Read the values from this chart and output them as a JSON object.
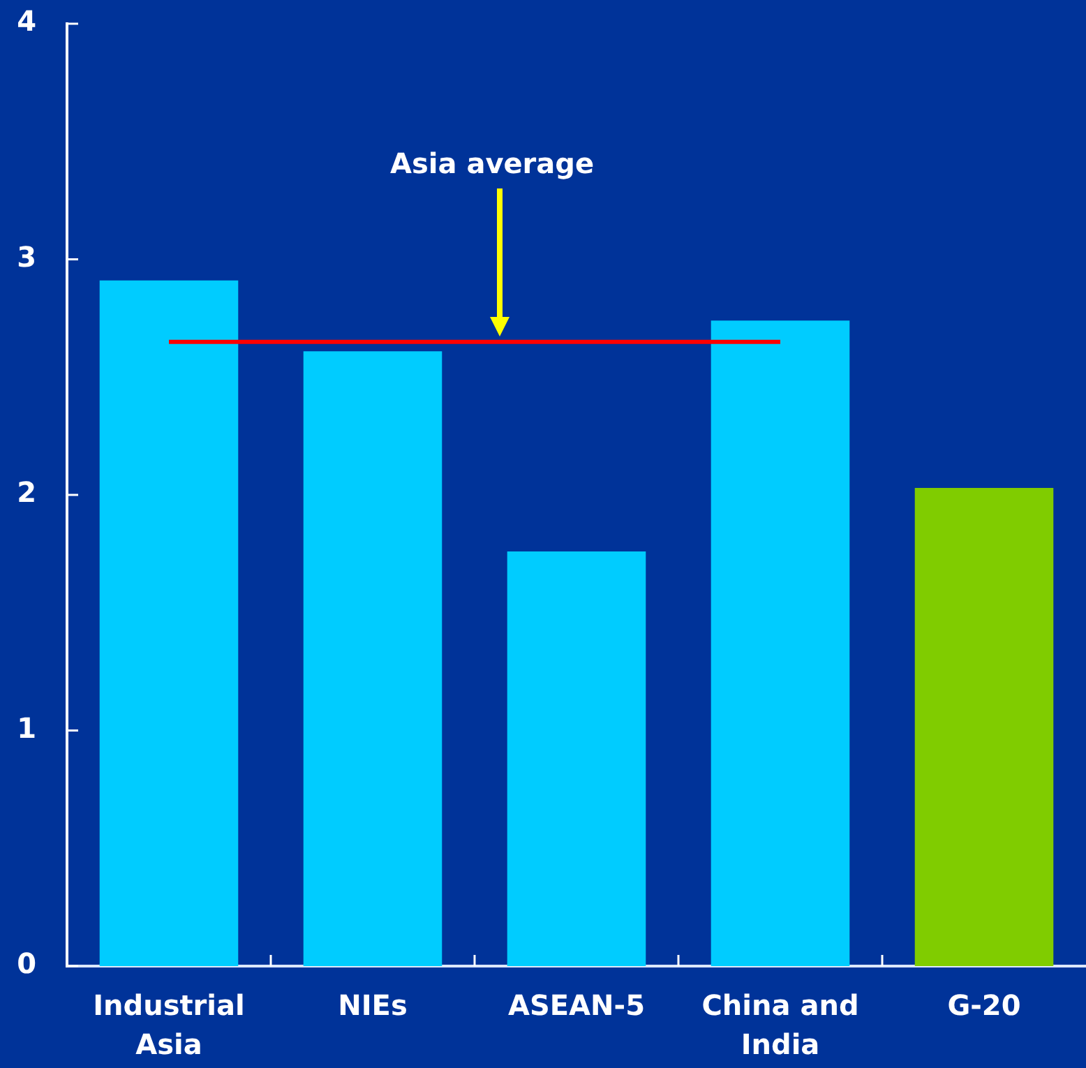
{
  "chart_data": {
    "type": "bar",
    "categories": [
      "Industrial Asia",
      "NIEs",
      "ASEAN-5",
      "China and India",
      "G-20"
    ],
    "values": [
      2.91,
      2.61,
      1.76,
      2.74,
      2.03
    ],
    "colors": [
      "#00ccff",
      "#00ccff",
      "#00ccff",
      "#00ccff",
      "#80cc00"
    ],
    "ylim": [
      0,
      4
    ],
    "yticks": [
      0,
      1,
      2,
      3,
      4
    ],
    "ref_lines": [
      {
        "axis": "y",
        "value": 2.65,
        "color": "#ff0000"
      }
    ],
    "annotations": [
      "Asia average"
    ]
  }
}
